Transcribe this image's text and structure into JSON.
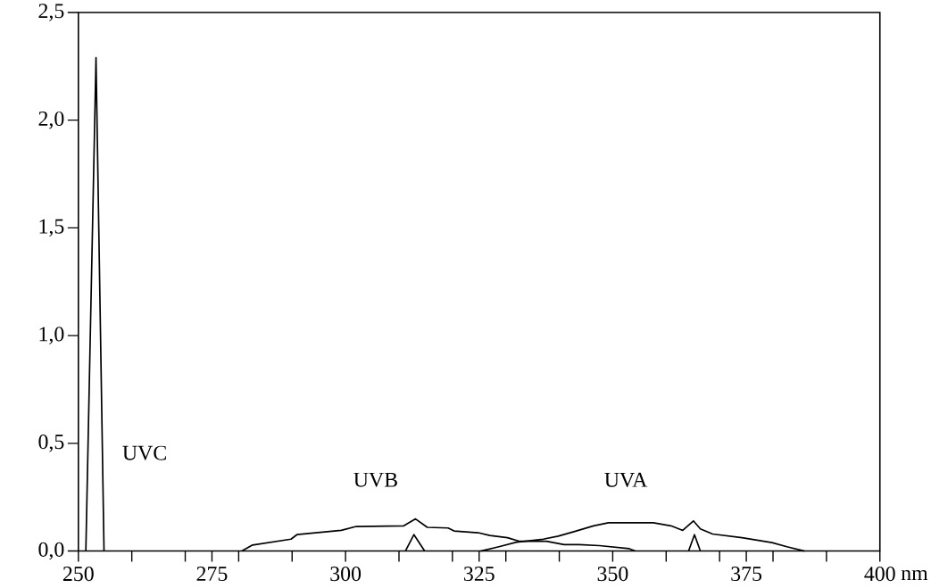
{
  "chart_data": {
    "type": "line",
    "xlabel": "nm",
    "xlim": [
      250,
      400
    ],
    "ylim": [
      0,
      2.5
    ],
    "xticks": [
      250,
      {
        "value": 260,
        "label": null
      },
      {
        "value": 270,
        "label": null
      },
      275,
      {
        "value": 280,
        "label": null
      },
      {
        "value": 290,
        "label": null
      },
      300,
      {
        "value": 310,
        "label": null
      },
      {
        "value": 320,
        "label": null
      },
      325,
      {
        "value": 330,
        "label": null
      },
      {
        "value": 340,
        "label": null
      },
      350,
      {
        "value": 360,
        "label": null
      },
      {
        "value": 370,
        "label": null
      },
      375,
      {
        "value": 380,
        "label": null
      },
      {
        "value": 390,
        "label": null
      },
      400
    ],
    "yticks": [
      {
        "value": 0,
        "label": "0,0"
      },
      {
        "value": 0.5,
        "label": "0,5"
      },
      {
        "value": 1,
        "label": "1,0"
      },
      {
        "value": 1.5,
        "label": "1,5"
      },
      {
        "value": 2,
        "label": "2,0"
      },
      {
        "value": 2.5,
        "label": "2,5"
      }
    ],
    "marker": "none",
    "line_style": "solid",
    "series": [
      {
        "color": "#000000",
        "x": [
          251.4,
          253.3,
          254.8
        ],
        "values": [
          0,
          2.29,
          0
        ]
      },
      {
        "color": "#000000",
        "x": [
          280.6,
          282.6,
          289.8,
          290.9,
          299.2,
          302,
          310.9,
          313.1,
          315.3,
          319.2,
          320.3,
          324.8,
          327,
          330.3,
          332.6,
          337.6,
          340.9,
          343.7,
          347.5,
          353.1,
          354.2
        ],
        "values": [
          0,
          0.028,
          0.055,
          0.076,
          0.096,
          0.114,
          0.117,
          0.149,
          0.11,
          0.107,
          0.093,
          0.085,
          0.072,
          0.062,
          0.045,
          0.045,
          0.03,
          0.03,
          0.025,
          0.011,
          0
        ]
      },
      {
        "color": "#000000",
        "x": [
          325.3,
          328.7,
          332,
          337,
          339.8,
          342.6,
          346.4,
          349.2,
          357.6,
          360.9,
          363.1,
          365.1,
          366.4,
          368.7,
          374.2,
          379.8,
          382.6,
          385.9
        ],
        "values": [
          0,
          0.02,
          0.041,
          0.055,
          0.069,
          0.089,
          0.117,
          0.131,
          0.131,
          0.117,
          0.096,
          0.14,
          0.103,
          0.079,
          0.062,
          0.039,
          0.02,
          0
        ]
      },
      {
        "color": "#000000",
        "x": [
          311.2,
          312.8,
          314.8,
          340,
          364.2,
          365.3,
          366.4
        ],
        "values": [
          0,
          0.076,
          0,
          null,
          0,
          0.076,
          0
        ]
      }
    ],
    "annotations": [
      "UVC",
      "UVB",
      "UVA"
    ]
  }
}
